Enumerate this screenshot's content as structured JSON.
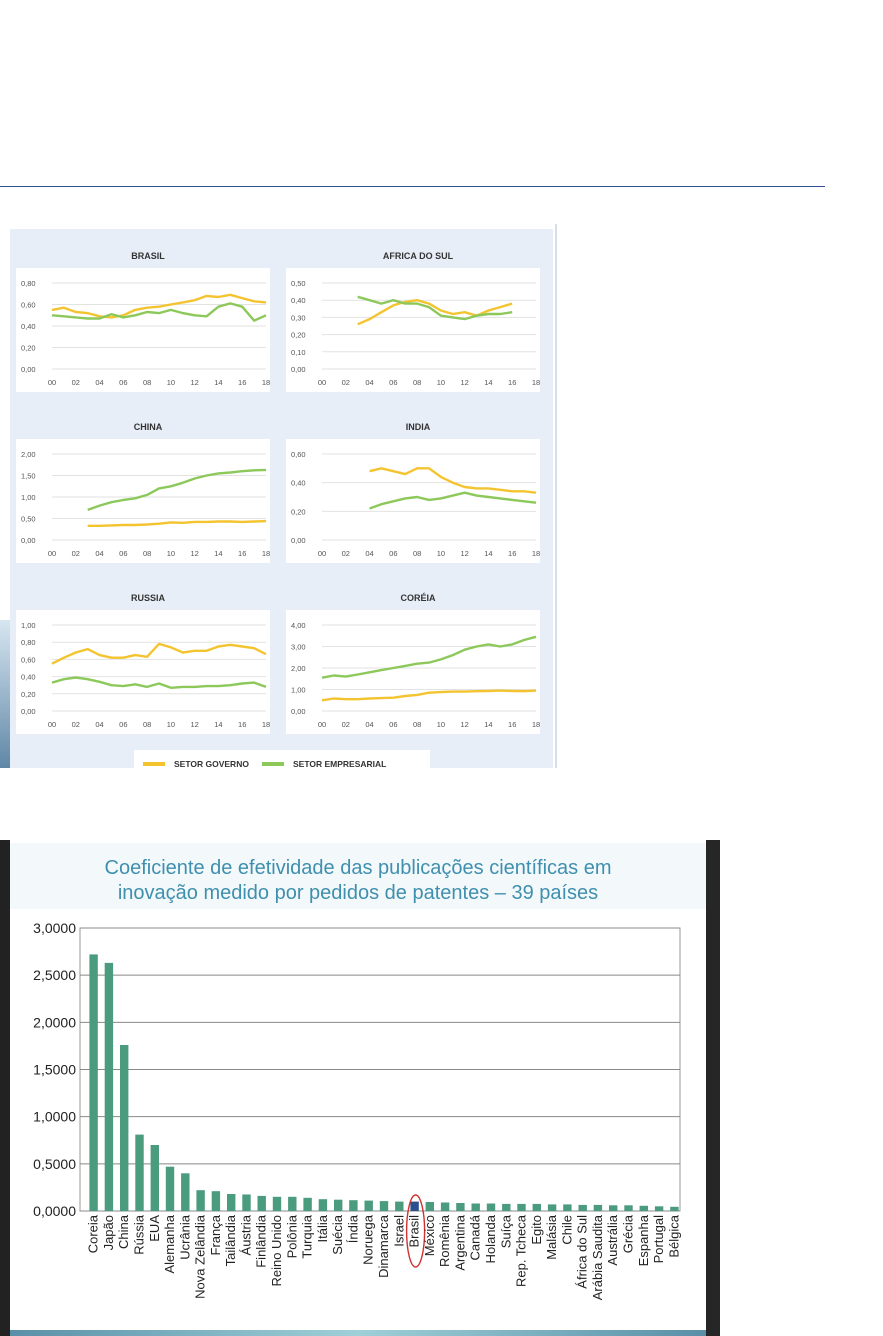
{
  "colors": {
    "government": "#f4c430",
    "business": "#8cc85a",
    "bar": "#4b9b7f",
    "bar_highlight": "#2b4f8f",
    "highlight_ring": "#d03030",
    "title_text": "#3f8fae"
  },
  "legend": {
    "government_label": "SETOR GOVERNO",
    "business_label": "SETOR EMPRESARIAL"
  },
  "chart_data": [
    {
      "type": "line",
      "title": "BRASIL",
      "x_ticks": [
        "00",
        "02",
        "04",
        "06",
        "08",
        "10",
        "12",
        "14",
        "16",
        "18"
      ],
      "x": [
        2000,
        2001,
        2002,
        2003,
        2004,
        2005,
        2006,
        2007,
        2008,
        2009,
        2010,
        2011,
        2012,
        2013,
        2014,
        2015,
        2016,
        2017,
        2018
      ],
      "ylim": [
        0,
        0.8
      ],
      "y_ticks": [
        "0,00",
        "0,20",
        "0,40",
        "0,60",
        "0,80"
      ],
      "series": [
        {
          "key": "government",
          "values": [
            0.55,
            0.57,
            0.53,
            0.52,
            0.49,
            0.48,
            0.5,
            0.55,
            0.57,
            0.58,
            0.6,
            0.62,
            0.64,
            0.68,
            0.67,
            0.69,
            0.66,
            0.63,
            0.62
          ]
        },
        {
          "key": "business",
          "values": [
            0.5,
            0.49,
            0.48,
            0.47,
            0.47,
            0.51,
            0.48,
            0.5,
            0.53,
            0.52,
            0.55,
            0.52,
            0.5,
            0.49,
            0.58,
            0.61,
            0.58,
            0.45,
            0.5
          ]
        }
      ]
    },
    {
      "type": "line",
      "title": "AFRICA DO SUL",
      "x_ticks": [
        "00",
        "02",
        "04",
        "06",
        "08",
        "10",
        "12",
        "14",
        "16",
        "18"
      ],
      "x": [
        2000,
        2001,
        2002,
        2003,
        2004,
        2005,
        2006,
        2007,
        2008,
        2009,
        2010,
        2011,
        2012,
        2013,
        2014,
        2015,
        2016,
        2017,
        2018
      ],
      "ylim": [
        0,
        0.5
      ],
      "y_ticks": [
        "0,00",
        "0,10",
        "0,20",
        "0,30",
        "0,40",
        "0,50"
      ],
      "series": [
        {
          "key": "government",
          "values": [
            null,
            null,
            null,
            0.26,
            0.29,
            0.33,
            0.37,
            0.39,
            0.4,
            0.38,
            0.34,
            0.32,
            0.33,
            0.31,
            0.34,
            0.36,
            0.38,
            null,
            null
          ]
        },
        {
          "key": "business",
          "values": [
            null,
            null,
            null,
            0.42,
            0.4,
            0.38,
            0.4,
            0.38,
            0.38,
            0.36,
            0.31,
            0.3,
            0.29,
            0.31,
            0.32,
            0.32,
            0.33,
            null,
            null
          ]
        }
      ]
    },
    {
      "type": "line",
      "title": "CHINA",
      "x_ticks": [
        "00",
        "02",
        "04",
        "06",
        "08",
        "10",
        "12",
        "14",
        "16",
        "18"
      ],
      "x": [
        2000,
        2001,
        2002,
        2003,
        2004,
        2005,
        2006,
        2007,
        2008,
        2009,
        2010,
        2011,
        2012,
        2013,
        2014,
        2015,
        2016,
        2017,
        2018
      ],
      "ylim": [
        0,
        2.0
      ],
      "y_ticks": [
        "0,00",
        "0,50",
        "1,00",
        "1,50",
        "2,00"
      ],
      "series": [
        {
          "key": "government",
          "values": [
            null,
            null,
            null,
            0.33,
            0.33,
            0.34,
            0.35,
            0.35,
            0.36,
            0.38,
            0.41,
            0.4,
            0.42,
            0.42,
            0.43,
            0.43,
            0.42,
            0.43,
            0.44
          ]
        },
        {
          "key": "business",
          "values": [
            null,
            null,
            null,
            0.7,
            0.8,
            0.88,
            0.93,
            0.97,
            1.05,
            1.2,
            1.25,
            1.33,
            1.43,
            1.5,
            1.55,
            1.57,
            1.6,
            1.62,
            1.63
          ]
        }
      ]
    },
    {
      "type": "line",
      "title": "INDIA",
      "x_ticks": [
        "00",
        "02",
        "04",
        "06",
        "08",
        "10",
        "12",
        "14",
        "16",
        "18"
      ],
      "x": [
        2000,
        2001,
        2002,
        2003,
        2004,
        2005,
        2006,
        2007,
        2008,
        2009,
        2010,
        2011,
        2012,
        2013,
        2014,
        2015,
        2016,
        2017,
        2018
      ],
      "ylim": [
        0,
        0.6
      ],
      "y_ticks": [
        "0,00",
        "0,20",
        "0,40",
        "0,60"
      ],
      "series": [
        {
          "key": "government",
          "values": [
            null,
            null,
            null,
            null,
            0.48,
            0.5,
            0.48,
            0.46,
            0.5,
            0.5,
            0.44,
            0.4,
            0.37,
            0.36,
            0.36,
            0.35,
            0.34,
            0.34,
            0.33
          ]
        },
        {
          "key": "business",
          "values": [
            null,
            null,
            null,
            null,
            0.22,
            0.25,
            0.27,
            0.29,
            0.3,
            0.28,
            0.29,
            0.31,
            0.33,
            0.31,
            0.3,
            0.29,
            0.28,
            0.27,
            0.26
          ]
        }
      ]
    },
    {
      "type": "line",
      "title": "RUSSIA",
      "x_ticks": [
        "00",
        "02",
        "04",
        "06",
        "08",
        "10",
        "12",
        "14",
        "16",
        "18"
      ],
      "x": [
        2000,
        2001,
        2002,
        2003,
        2004,
        2005,
        2006,
        2007,
        2008,
        2009,
        2010,
        2011,
        2012,
        2013,
        2014,
        2015,
        2016,
        2017,
        2018
      ],
      "ylim": [
        0,
        1.0
      ],
      "y_ticks": [
        "0,00",
        "0,20",
        "0,40",
        "0,60",
        "0,80",
        "1,00"
      ],
      "series": [
        {
          "key": "government",
          "values": [
            0.55,
            0.62,
            0.68,
            0.72,
            0.65,
            0.62,
            0.62,
            0.65,
            0.63,
            0.78,
            0.74,
            0.68,
            0.7,
            0.7,
            0.75,
            0.77,
            0.75,
            0.73,
            0.66
          ]
        },
        {
          "key": "business",
          "values": [
            0.33,
            0.37,
            0.39,
            0.37,
            0.34,
            0.3,
            0.29,
            0.31,
            0.28,
            0.32,
            0.27,
            0.28,
            0.28,
            0.29,
            0.29,
            0.3,
            0.32,
            0.33,
            0.28
          ]
        }
      ]
    },
    {
      "type": "line",
      "title": "CORÉIA",
      "x_ticks": [
        "00",
        "02",
        "04",
        "06",
        "08",
        "10",
        "12",
        "14",
        "16",
        "18"
      ],
      "x": [
        2000,
        2001,
        2002,
        2003,
        2004,
        2005,
        2006,
        2007,
        2008,
        2009,
        2010,
        2011,
        2012,
        2013,
        2014,
        2015,
        2016,
        2017,
        2018
      ],
      "ylim": [
        0,
        4.0
      ],
      "y_ticks": [
        "0,00",
        "1,00",
        "2,00",
        "3,00",
        "4,00"
      ],
      "series": [
        {
          "key": "government",
          "values": [
            0.5,
            0.58,
            0.55,
            0.55,
            0.58,
            0.6,
            0.62,
            0.7,
            0.75,
            0.85,
            0.88,
            0.9,
            0.9,
            0.92,
            0.93,
            0.95,
            0.93,
            0.92,
            0.95
          ]
        },
        {
          "key": "business",
          "values": [
            1.55,
            1.65,
            1.6,
            1.7,
            1.8,
            1.9,
            2.0,
            2.1,
            2.2,
            2.25,
            2.4,
            2.6,
            2.85,
            3.0,
            3.1,
            3.0,
            3.1,
            3.3,
            3.45
          ]
        }
      ]
    },
    {
      "type": "bar",
      "title_line1": "Coeficiente de efetividade das publicações científicas em",
      "title_line2": "inovação medido por pedidos de patentes – 39 países",
      "ylim": [
        0,
        3.0
      ],
      "y_ticks": [
        "0,0000",
        "0,5000",
        "1,0000",
        "1,5000",
        "2,0000",
        "2,5000",
        "3,0000"
      ],
      "highlight": "Brasil",
      "categories": [
        "Coreia",
        "Japão",
        "China",
        "Rússia",
        "EUA",
        "Alemanha",
        "Ucrânia",
        "Nova Zelândia",
        "França",
        "Tailândia",
        "Áustria",
        "Finlândia",
        "Reino Unido",
        "Polônia",
        "Turquia",
        "Itália",
        "Suécia",
        "Índia",
        "Noruega",
        "Dinamarca",
        "Israel",
        "Brasil",
        "México",
        "Romênia",
        "Argentina",
        "Canadá",
        "Holanda",
        "Suíça",
        "Rep. Tcheca",
        "Egito",
        "Malásia",
        "Chile",
        "África do Sul",
        "Arábia Saudita",
        "Austrália",
        "Grécia",
        "Espanha",
        "Portugal",
        "Bélgica"
      ],
      "values": [
        2.72,
        2.63,
        1.76,
        0.81,
        0.7,
        0.47,
        0.4,
        0.22,
        0.21,
        0.18,
        0.175,
        0.16,
        0.15,
        0.15,
        0.14,
        0.125,
        0.12,
        0.115,
        0.11,
        0.105,
        0.1,
        0.1,
        0.095,
        0.09,
        0.085,
        0.08,
        0.08,
        0.075,
        0.075,
        0.075,
        0.07,
        0.07,
        0.065,
        0.065,
        0.06,
        0.06,
        0.055,
        0.05,
        0.045
      ]
    }
  ]
}
